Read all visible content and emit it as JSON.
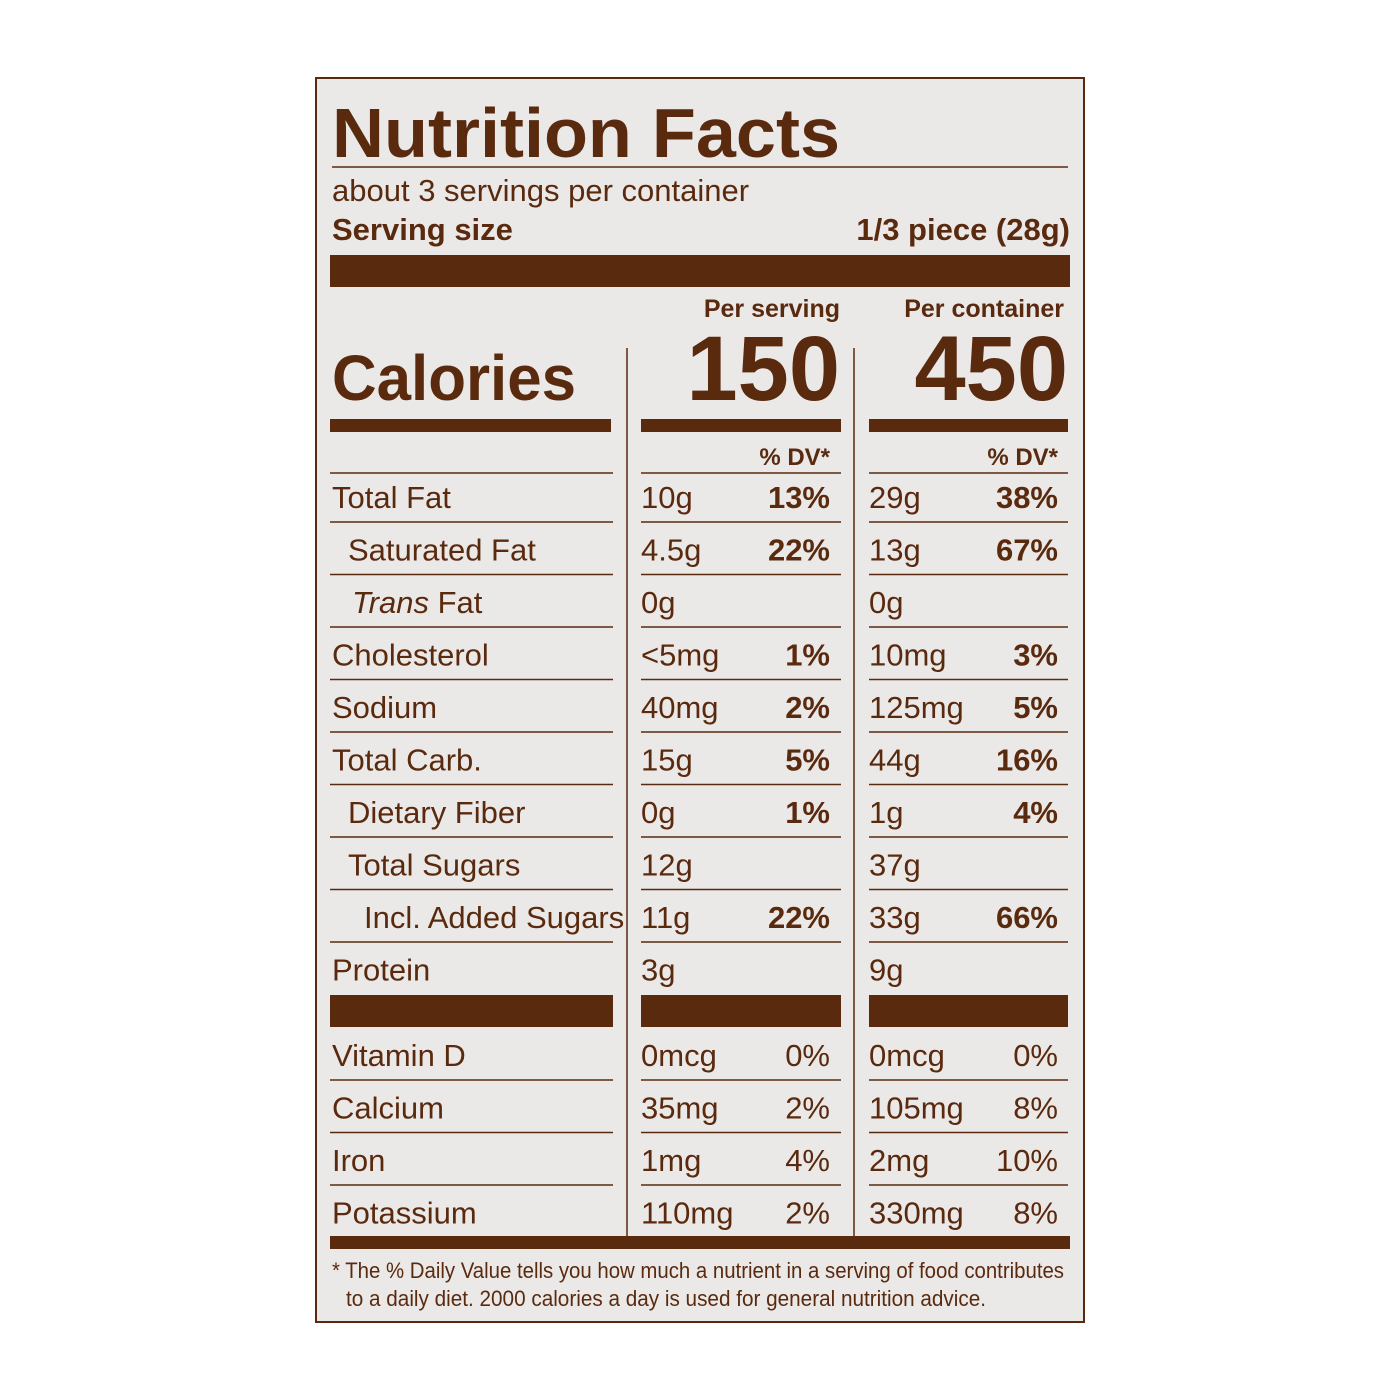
{
  "title": "Nutrition Facts",
  "servings": "about 3 servings per container",
  "serving_size_label": "Serving size",
  "serving_size": "1/3 piece (28g)",
  "columns": [
    "Per serving",
    "Per container"
  ],
  "calories_label": "Calories",
  "calories": [
    150,
    450
  ],
  "dv_header": "% DV*",
  "nutrients": [
    {
      "name": "Total Fat",
      "amounts": [
        "10g",
        "29g"
      ],
      "dv": [
        "13%",
        "38%"
      ]
    },
    {
      "name": "Saturated Fat",
      "amounts": [
        "4.5g",
        "13g"
      ],
      "dv": [
        "22%",
        "67%"
      ]
    },
    {
      "name_italic": "Trans",
      "name": "Fat",
      "amounts": [
        "0g",
        "0g"
      ]
    },
    {
      "name": "Cholesterol",
      "amounts": [
        "<5mg",
        "10mg"
      ],
      "dv": [
        "1%",
        "3%"
      ]
    },
    {
      "name": "Sodium",
      "amounts": [
        "40mg",
        "125mg"
      ],
      "dv": [
        "2%",
        "5%"
      ]
    },
    {
      "name": "Total Carb.",
      "amounts": [
        "15g",
        "44g"
      ],
      "dv": [
        "5%",
        "16%"
      ]
    },
    {
      "name": "Dietary Fiber",
      "amounts": [
        "0g",
        "1g"
      ],
      "dv": [
        "1%",
        "4%"
      ]
    },
    {
      "name": "Total Sugars",
      "amounts": [
        "12g",
        "37g"
      ]
    },
    {
      "name": "Incl. Added Sugars",
      "amounts": [
        "11g",
        "33g"
      ],
      "dv": [
        "22%",
        "66%"
      ]
    },
    {
      "name": "Protein",
      "amounts": [
        "3g",
        "9g"
      ]
    }
  ],
  "vitamins": [
    {
      "name": "Vitamin D",
      "amounts": [
        "0mcg",
        "0mcg"
      ],
      "dv": [
        "0%",
        "0%"
      ]
    },
    {
      "name": "Calcium",
      "amounts": [
        "35mg",
        "105mg"
      ],
      "dv": [
        "2%",
        "8%"
      ]
    },
    {
      "name": "Iron",
      "amounts": [
        "1mg",
        "2mg"
      ],
      "dv": [
        "4%",
        "10%"
      ]
    },
    {
      "name": "Potassium",
      "amounts": [
        "110mg",
        "330mg"
      ],
      "dv": [
        "2%",
        "8%"
      ]
    }
  ],
  "footnote": [
    "* The % Daily Value tells you how much a nutrient in a serving of food contributes",
    "to a daily diet. 2000 calories a day is used for general nutrition advice."
  ]
}
